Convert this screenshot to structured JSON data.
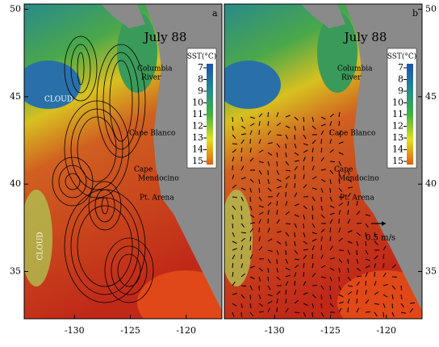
{
  "axes": {
    "xlim": [
      -134.5,
      -116.8
    ],
    "ylim": [
      32.3,
      50.3
    ],
    "xticks": [
      -130,
      -125,
      -120
    ],
    "yticks": [
      35,
      40,
      45,
      50
    ]
  },
  "panels": [
    {
      "label": "a",
      "date": "July 88",
      "colorbar": {
        "title": "SST(°C)",
        "ticks": [
          7,
          8,
          9,
          10,
          11,
          12,
          13,
          14,
          15
        ]
      },
      "places": [
        {
          "lines": [
            "Columbia",
            "River"
          ]
        },
        {
          "lines": [
            "Cape Blanco"
          ]
        },
        {
          "lines": [
            "Cape",
            "Mendocino"
          ]
        },
        {
          "lines": [
            "Pt. Arena"
          ]
        }
      ],
      "notes": [
        "CLOUD",
        "CLOUD"
      ]
    },
    {
      "label": "b",
      "date": "July 88",
      "colorbar": {
        "title": "SST(°C)",
        "ticks": [
          7,
          8,
          9,
          10,
          11,
          12,
          13,
          14,
          15
        ]
      },
      "places": [
        {
          "lines": [
            "Columbia",
            "River"
          ]
        },
        {
          "lines": [
            "Cape Blanco"
          ]
        },
        {
          "lines": [
            "Cape",
            "Mendocino"
          ]
        },
        {
          "lines": [
            "Pt. Arena"
          ]
        }
      ],
      "scale": "0.5 m/s"
    }
  ]
}
